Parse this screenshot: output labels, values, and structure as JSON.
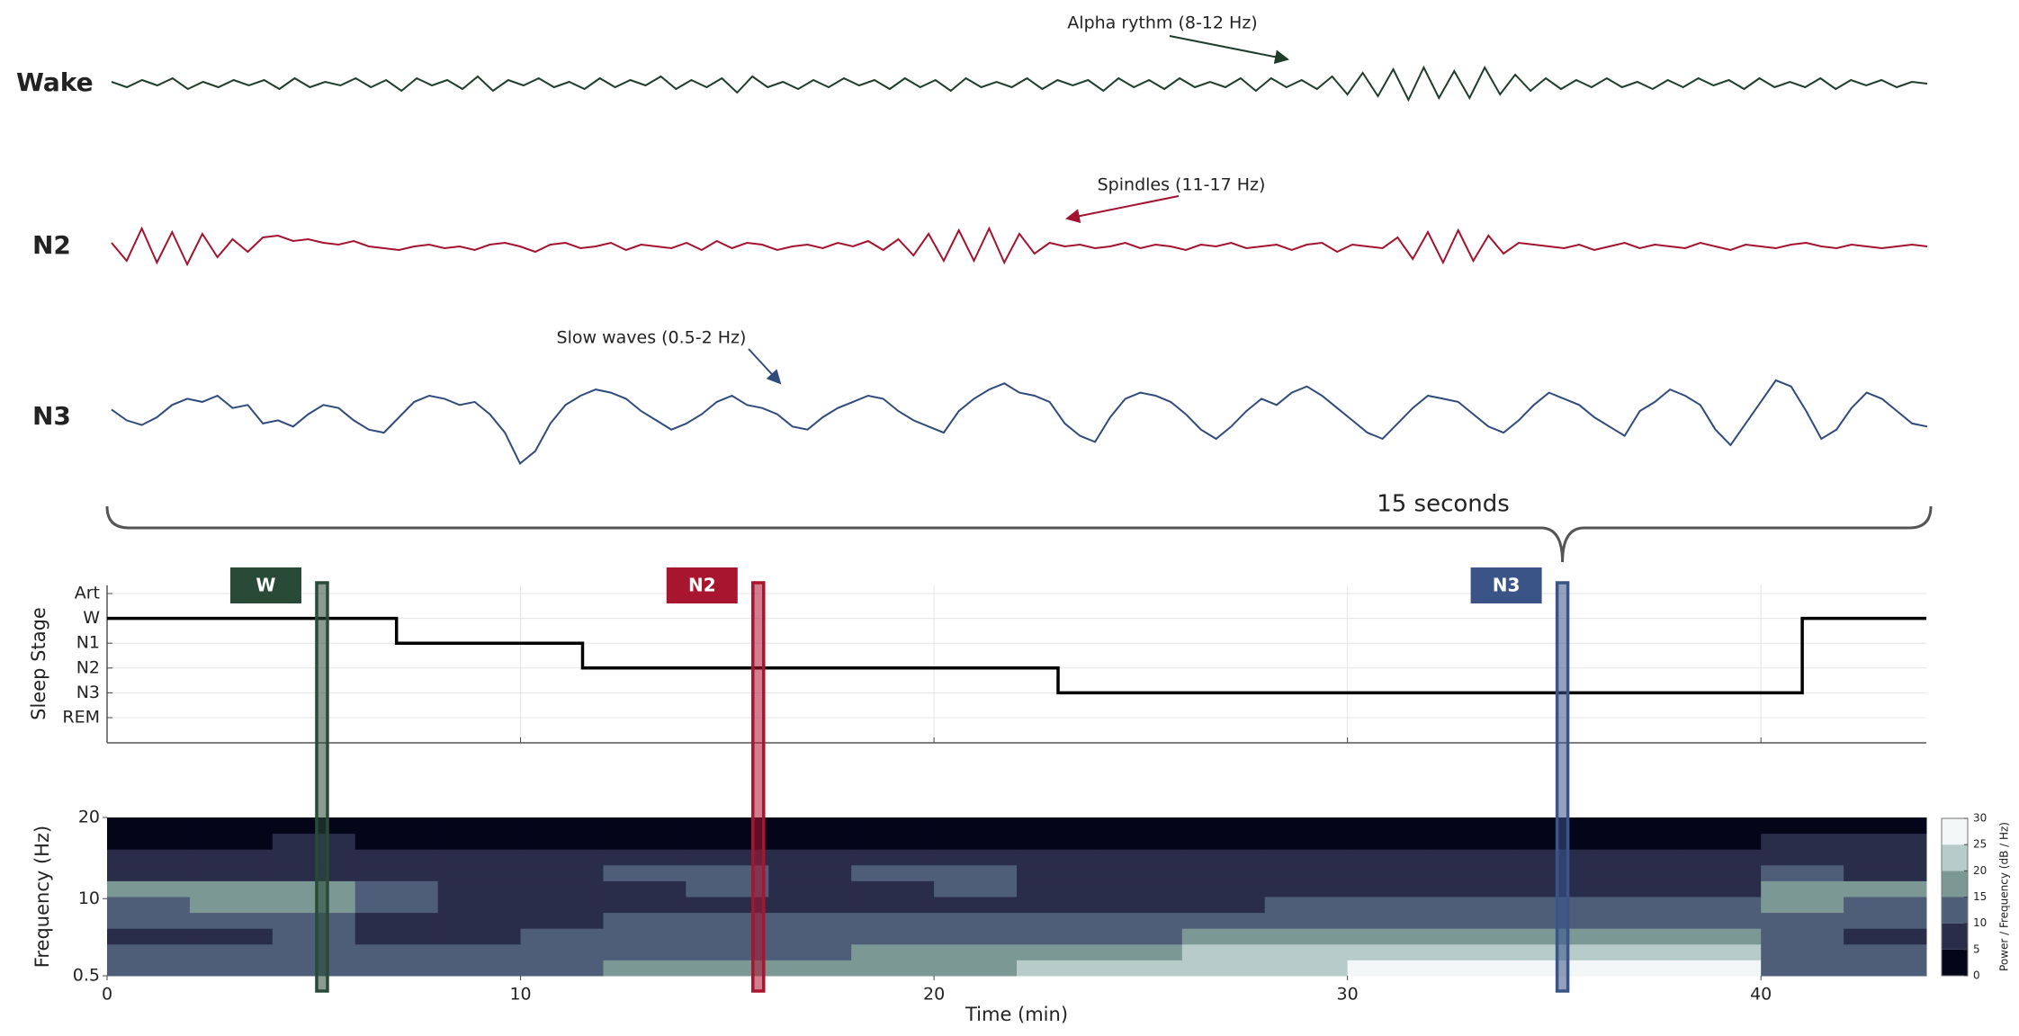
{
  "chart_data": [
    {
      "type": "eeg",
      "brace_label": "15 seconds",
      "series": [
        {
          "name": "Wake",
          "color": "#1f3d2b",
          "annotation": "Alpha rythm (8-12 Hz)",
          "ylim": [
            -30,
            30
          ],
          "values": [
            1,
            -2,
            2,
            -1,
            3,
            -3,
            1,
            -2,
            2,
            -1,
            2,
            -3,
            3,
            -2,
            1,
            -1,
            3,
            -2,
            2,
            -4,
            3,
            -1,
            2,
            -3,
            4,
            -4,
            2,
            -1,
            3,
            -2,
            1,
            -3,
            3,
            -2,
            2,
            -1,
            4,
            -3,
            2,
            -2,
            3,
            -5,
            4,
            -2,
            1,
            -3,
            2,
            -2,
            3,
            -1,
            2,
            -3,
            3,
            -2,
            2,
            -4,
            3,
            -2,
            1,
            -2,
            3,
            -3,
            2,
            -1,
            2,
            -4,
            3,
            -2,
            2,
            -3,
            3,
            -2,
            1,
            -2,
            3,
            -4,
            3,
            -2,
            2,
            -3,
            4,
            -6,
            6,
            -7,
            8,
            -9,
            9,
            -8,
            7,
            -8,
            9,
            -6,
            5,
            -4,
            3,
            -3,
            2,
            -2,
            3,
            -2,
            1,
            -3,
            2,
            -2,
            3,
            -1,
            2,
            -3,
            3,
            -2,
            1,
            -2,
            3,
            -3,
            2,
            -1,
            2,
            -2,
            1,
            0
          ]
        },
        {
          "name": "N2",
          "color": "#a3132f",
          "annotation": "Spindles (11-17 Hz)",
          "ylim": [
            -30,
            30
          ],
          "values": [
            2,
            -8,
            10,
            -9,
            8,
            -10,
            7,
            -6,
            4,
            -3,
            5,
            6,
            3,
            4,
            2,
            1,
            3,
            0,
            -1,
            -2,
            0,
            1,
            -1,
            0,
            -2,
            1,
            2,
            0,
            -3,
            1,
            2,
            -1,
            0,
            2,
            -2,
            1,
            0,
            -1,
            2,
            -2,
            3,
            -1,
            2,
            1,
            -2,
            0,
            1,
            -1,
            2,
            0,
            3,
            -2,
            4,
            -5,
            7,
            -8,
            9,
            -8,
            10,
            -9,
            7,
            -4,
            2,
            0,
            1,
            -1,
            0,
            2,
            -1,
            1,
            0,
            -2,
            1,
            0,
            2,
            -1,
            0,
            1,
            -2,
            1,
            2,
            -3,
            1,
            0,
            -1,
            5,
            -7,
            8,
            -9,
            9,
            -8,
            6,
            -4,
            2,
            1,
            0,
            -1,
            1,
            -2,
            0,
            2,
            -1,
            1,
            0,
            -1,
            2,
            0,
            -2,
            1,
            0,
            -1,
            1,
            2,
            0,
            -1,
            1,
            0,
            -1,
            0,
            1,
            0
          ]
        },
        {
          "name": "N3",
          "color": "#2f4b7c",
          "annotation": "Slow waves (0.5-2 Hz)",
          "ylim": [
            -35,
            35
          ],
          "values": [
            5,
            -2,
            -5,
            0,
            8,
            12,
            10,
            14,
            6,
            8,
            -4,
            -2,
            -6,
            2,
            8,
            6,
            -2,
            -8,
            -10,
            0,
            10,
            14,
            12,
            8,
            10,
            2,
            -10,
            -30,
            -22,
            -4,
            8,
            14,
            18,
            16,
            12,
            4,
            -2,
            -8,
            -4,
            2,
            10,
            14,
            8,
            6,
            2,
            -6,
            -8,
            0,
            6,
            10,
            14,
            12,
            4,
            -2,
            -6,
            -10,
            4,
            12,
            18,
            22,
            16,
            14,
            10,
            -4,
            -12,
            -16,
            0,
            12,
            16,
            14,
            10,
            2,
            -8,
            -14,
            -6,
            4,
            12,
            8,
            16,
            20,
            14,
            6,
            -2,
            -10,
            -14,
            -4,
            6,
            14,
            12,
            10,
            2,
            -6,
            -10,
            -2,
            8,
            16,
            12,
            8,
            0,
            -6,
            -12,
            4,
            10,
            18,
            14,
            8,
            -8,
            -18,
            -4,
            10,
            24,
            20,
            4,
            -14,
            -8,
            6,
            16,
            12,
            4,
            -4,
            -6
          ]
        }
      ]
    },
    {
      "type": "step",
      "ylabel": "Sleep Stage",
      "ycategories": [
        "Art",
        "W",
        "N1",
        "N2",
        "N3",
        "REM"
      ],
      "x": [
        0,
        7,
        7,
        11.5,
        11.5,
        23,
        23,
        41,
        41,
        44
      ],
      "values": [
        "W",
        "W",
        "N1",
        "N1",
        "N2",
        "N2",
        "N3",
        "N3",
        "W",
        "W"
      ],
      "color": "#000000",
      "grid": true,
      "markers": [
        {
          "label": "W",
          "x": 5.2,
          "color": "#2a4a38"
        },
        {
          "label": "N2",
          "x": 15.75,
          "color": "#a8152f"
        },
        {
          "label": "N3",
          "x": 35.2,
          "color": "#3b5488"
        }
      ]
    },
    {
      "type": "heatmap",
      "xlabel": "Time (min)",
      "ylabel": "Frequency (Hz)",
      "xlim": [
        0,
        44
      ],
      "xticks": [
        0,
        10,
        20,
        30,
        40
      ],
      "ylim": [
        0.5,
        20
      ],
      "yticks": [
        0.5,
        10,
        20
      ],
      "xbins": [
        0,
        2,
        4,
        6,
        8,
        10,
        12,
        14,
        16,
        18,
        20,
        22,
        24,
        26,
        28,
        30,
        32,
        34,
        36,
        38,
        40,
        42,
        44
      ],
      "ybins": [
        0.5,
        2.45,
        4.4,
        6.35,
        8.3,
        10.25,
        12.2,
        14.15,
        16.1,
        18.05,
        20
      ],
      "values": [
        [
          12,
          12,
          14,
          12,
          13,
          14,
          16,
          16,
          17,
          17,
          18,
          20,
          22,
          24,
          24,
          25,
          26,
          26,
          27,
          26,
          14,
          12
        ],
        [
          10,
          10,
          12,
          10,
          11,
          12,
          14,
          14,
          14,
          15,
          15,
          17,
          18,
          20,
          20,
          21,
          22,
          22,
          22,
          22,
          12,
          10
        ],
        [
          9,
          9,
          10,
          9,
          9,
          10,
          12,
          12,
          12,
          12,
          13,
          13,
          14,
          15,
          15,
          16,
          16,
          16,
          17,
          16,
          11,
          9
        ],
        [
          10,
          10,
          11,
          9,
          8,
          9,
          10,
          10,
          10,
          10,
          10,
          11,
          11,
          12,
          12,
          12,
          13,
          13,
          13,
          12,
          12,
          10
        ],
        [
          14,
          15,
          15,
          13,
          8,
          8,
          8,
          9,
          9,
          8,
          9,
          9,
          9,
          9,
          10,
          10,
          10,
          10,
          10,
          10,
          16,
          14
        ],
        [
          15,
          16,
          16,
          14,
          9,
          8,
          9,
          10,
          9,
          9,
          10,
          9,
          8,
          8,
          8,
          8,
          8,
          9,
          8,
          8,
          17,
          15
        ],
        [
          8,
          9,
          9,
          8,
          6,
          7,
          10,
          10,
          9,
          10,
          10,
          8,
          7,
          7,
          7,
          7,
          7,
          7,
          7,
          7,
          10,
          9
        ],
        [
          6,
          6,
          7,
          6,
          5,
          6,
          7,
          7,
          7,
          7,
          7,
          6,
          5,
          5,
          5,
          5,
          5,
          5,
          5,
          5,
          8,
          7
        ],
        [
          4,
          4,
          5,
          4,
          4,
          4,
          4,
          4,
          4,
          4,
          4,
          4,
          3,
          3,
          3,
          3,
          3,
          3,
          3,
          3,
          6,
          5
        ],
        [
          2,
          2,
          3,
          2,
          2,
          2,
          2,
          2,
          2,
          2,
          2,
          2,
          2,
          2,
          2,
          2,
          2,
          2,
          2,
          2,
          4,
          3
        ]
      ],
      "colorbar": {
        "label": "Power / Frequency (dB / Hz)",
        "lim": [
          0,
          30
        ],
        "ticks": [
          0,
          5,
          10,
          15,
          20,
          25,
          30
        ],
        "colors": [
          "#05051a",
          "#2a2d4a",
          "#4f5e78",
          "#7b9894",
          "#b7cbc8",
          "#f2f6f6"
        ]
      }
    }
  ]
}
